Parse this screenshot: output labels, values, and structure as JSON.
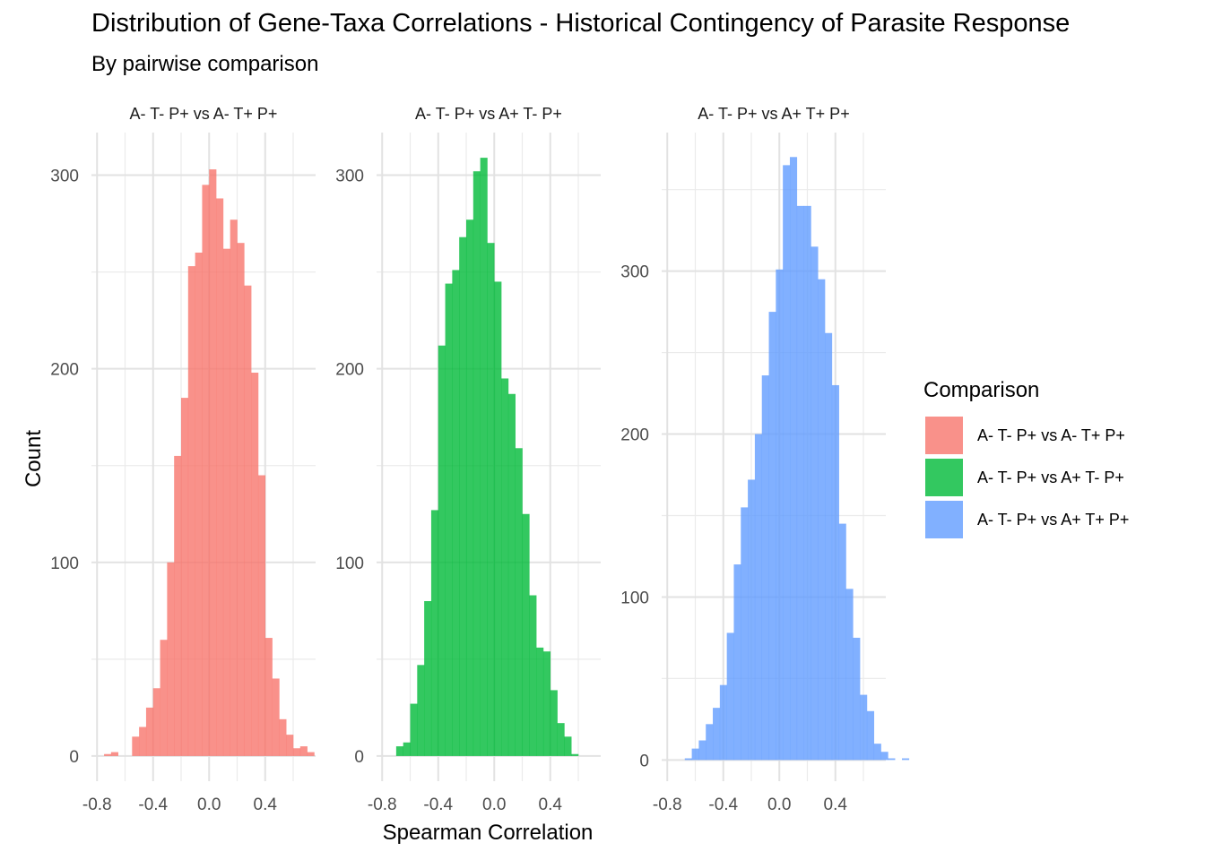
{
  "chart_data": {
    "type": "bar",
    "title": "Distribution of Gene-Taxa Correlations - Historical Contingency of Parasite Response",
    "subtitle": "By pairwise comparison",
    "xlabel": "Spearman Correlation",
    "ylabel": "Count",
    "x_ticks": [
      "-0.8",
      "-0.4",
      "0.0",
      "0.4"
    ],
    "legend": {
      "title": "Comparison",
      "placement": "right",
      "entries": [
        "A- T- P+ vs A- T+ P+",
        "A- T- P+ vs A+ T- P+",
        "A- T- P+ vs A+ T+ P+"
      ]
    },
    "bin_width": 0.05,
    "xlim": [
      -0.84,
      0.76
    ],
    "grid": true,
    "panels": [
      {
        "name": "A- T- P+ vs A- T+ P+",
        "color": "#F8766D",
        "ylim": [
          -13,
          322
        ],
        "y_ticks": [
          0,
          100,
          200,
          300
        ],
        "bin_start": -0.75,
        "values": [
          1,
          2,
          0,
          0,
          10,
          15,
          25,
          35,
          60,
          100,
          155,
          185,
          253,
          260,
          295,
          303,
          288,
          262,
          277,
          265,
          243,
          198,
          145,
          61,
          40,
          19,
          11,
          4,
          5,
          2
        ]
      },
      {
        "name": "A- T- P+ vs A+ T- P+",
        "color": "#00BA38",
        "ylim": [
          -13,
          322
        ],
        "y_ticks": [
          0,
          100,
          200,
          300
        ],
        "bin_start": -0.7,
        "values": [
          5,
          7,
          27,
          47,
          80,
          127,
          212,
          244,
          251,
          268,
          277,
          302,
          309,
          265,
          245,
          195,
          187,
          159,
          125,
          83,
          56,
          54,
          34,
          17,
          10,
          1
        ]
      },
      {
        "name": "A- T- P+ vs A+ T+ P+",
        "color": "#619CFF",
        "ylim": [
          -13,
          385
        ],
        "y_ticks": [
          0,
          100,
          200,
          300
        ],
        "bin_start": -0.675,
        "values": [
          1,
          7,
          12,
          22,
          32,
          46,
          78,
          120,
          155,
          172,
          200,
          236,
          275,
          301,
          365,
          370,
          340,
          340,
          315,
          295,
          262,
          230,
          145,
          105,
          75,
          40,
          30,
          10,
          5,
          1,
          0,
          1
        ]
      }
    ]
  }
}
